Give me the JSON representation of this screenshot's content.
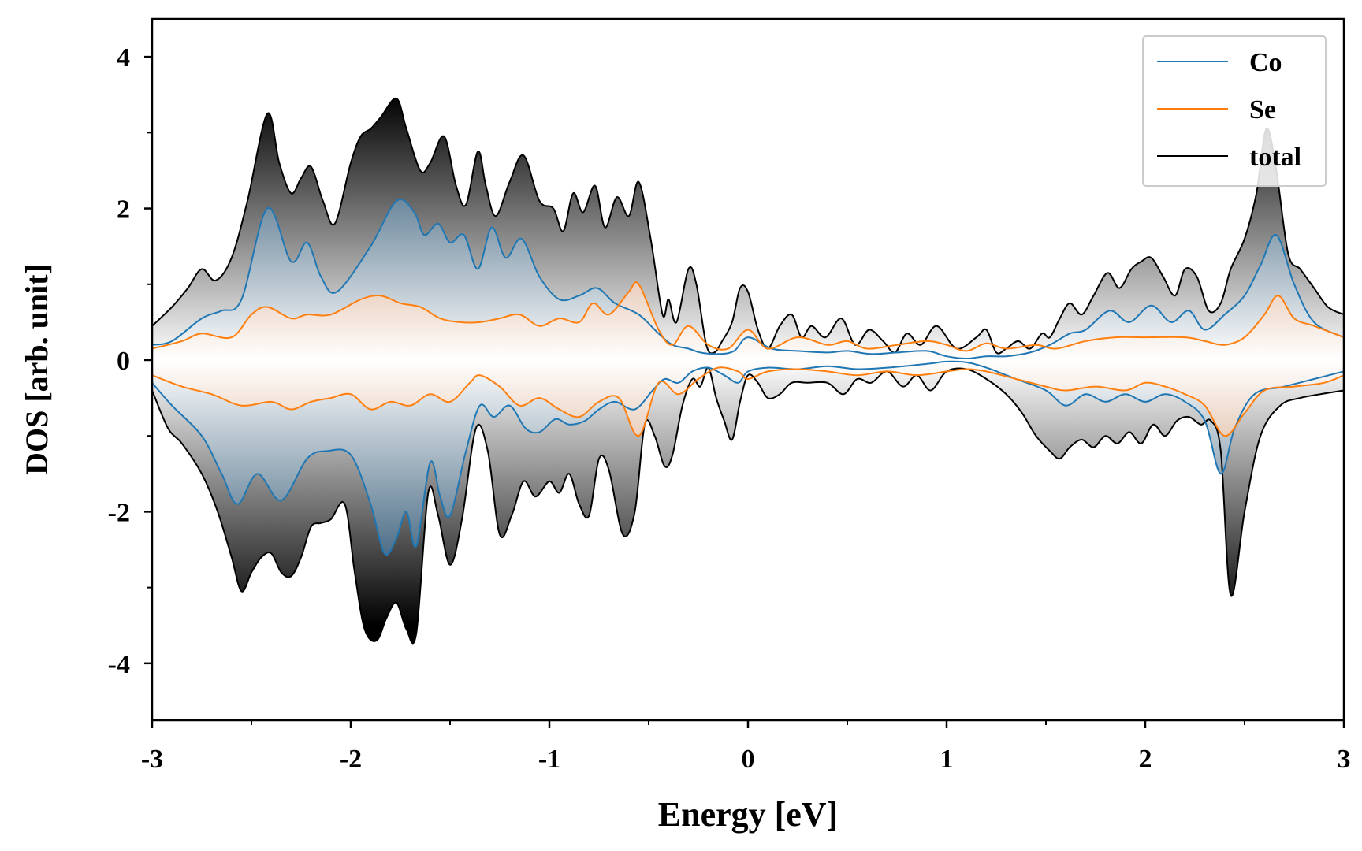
{
  "chart_data": {
    "type": "area",
    "title": "",
    "xlabel": "Energy [eV]",
    "ylabel": "DOS [arb. unit]",
    "xlim": [
      -3,
      3
    ],
    "ylim": [
      -4.75,
      4.5
    ],
    "x_ticks": [
      -3,
      -2,
      -1,
      0,
      1,
      2,
      3
    ],
    "x_tick_labels": [
      "-3",
      "-2",
      "-1",
      "0",
      "1",
      "2",
      "3"
    ],
    "y_ticks": [
      -4,
      -2,
      0,
      2,
      4
    ],
    "y_tick_labels": [
      "-4",
      "-2",
      "0",
      "2",
      "4"
    ],
    "legend_position": "top-right",
    "grid": false,
    "series": [
      {
        "name": "Co",
        "color": "#1f77b4",
        "fill_color": "#0d3a5c",
        "spin_up": {
          "x": [
            -3.0,
            -2.9,
            -2.75,
            -2.65,
            -2.55,
            -2.42,
            -2.3,
            -2.22,
            -2.15,
            -2.07,
            -1.9,
            -1.77,
            -1.68,
            -1.63,
            -1.56,
            -1.5,
            -1.43,
            -1.36,
            -1.29,
            -1.22,
            -1.14,
            -1.05,
            -0.95,
            -0.85,
            -0.76,
            -0.67,
            -0.55,
            -0.45,
            -0.38,
            -0.3,
            -0.24,
            -0.15,
            -0.07,
            0.0,
            0.12,
            0.25,
            0.4,
            0.5,
            0.62,
            0.75,
            0.9,
            1.0,
            1.1,
            1.2,
            1.3,
            1.42,
            1.52,
            1.62,
            1.7,
            1.82,
            1.92,
            2.03,
            2.13,
            2.22,
            2.3,
            2.4,
            2.5,
            2.58,
            2.66,
            2.75,
            2.85,
            3.0
          ],
          "y": [
            0.2,
            0.25,
            0.55,
            0.65,
            0.8,
            2.0,
            1.3,
            1.55,
            1.1,
            0.9,
            1.5,
            2.1,
            1.95,
            1.65,
            1.8,
            1.55,
            1.65,
            1.2,
            1.75,
            1.35,
            1.6,
            1.1,
            0.8,
            0.85,
            0.95,
            0.75,
            0.6,
            0.35,
            0.2,
            0.15,
            0.1,
            0.08,
            0.12,
            0.3,
            0.15,
            0.12,
            0.1,
            0.12,
            0.08,
            0.1,
            0.12,
            0.05,
            0.02,
            0.05,
            0.05,
            0.1,
            0.2,
            0.35,
            0.4,
            0.65,
            0.5,
            0.72,
            0.5,
            0.65,
            0.4,
            0.6,
            0.85,
            1.25,
            1.65,
            1.0,
            0.5,
            0.3
          ]
        },
        "spin_down": {
          "x": [
            -3.0,
            -2.9,
            -2.75,
            -2.65,
            -2.57,
            -2.47,
            -2.35,
            -2.22,
            -2.12,
            -2.0,
            -1.9,
            -1.83,
            -1.77,
            -1.72,
            -1.67,
            -1.6,
            -1.55,
            -1.5,
            -1.42,
            -1.35,
            -1.28,
            -1.2,
            -1.12,
            -1.05,
            -0.97,
            -0.9,
            -0.82,
            -0.75,
            -0.67,
            -0.57,
            -0.48,
            -0.42,
            -0.35,
            -0.28,
            -0.2,
            -0.12,
            -0.05,
            0.0,
            0.1,
            0.25,
            0.4,
            0.55,
            0.7,
            0.9,
            1.0,
            1.1,
            1.2,
            1.35,
            1.5,
            1.6,
            1.7,
            1.8,
            1.9,
            2.0,
            2.1,
            2.2,
            2.3,
            2.38,
            2.45,
            2.55,
            2.7,
            2.85,
            3.0
          ],
          "y": [
            -0.3,
            -0.6,
            -1.0,
            -1.5,
            -1.9,
            -1.5,
            -1.85,
            -1.3,
            -1.2,
            -1.25,
            -1.9,
            -2.55,
            -2.35,
            -2.0,
            -2.45,
            -1.35,
            -1.8,
            -2.05,
            -1.2,
            -0.6,
            -0.75,
            -0.6,
            -0.9,
            -0.95,
            -0.78,
            -0.85,
            -0.8,
            -0.65,
            -0.55,
            -0.65,
            -0.4,
            -0.25,
            -0.3,
            -0.15,
            -0.1,
            -0.2,
            -0.3,
            -0.15,
            -0.1,
            -0.12,
            -0.08,
            -0.12,
            -0.1,
            -0.05,
            -0.02,
            -0.03,
            -0.1,
            -0.25,
            -0.4,
            -0.6,
            -0.45,
            -0.55,
            -0.45,
            -0.55,
            -0.45,
            -0.55,
            -0.8,
            -1.5,
            -0.9,
            -0.45,
            -0.35,
            -0.25,
            -0.15
          ]
        }
      },
      {
        "name": "Se",
        "color": "#ff7f0e",
        "fill_color": "#b5571a",
        "spin_up": {
          "x": [
            -3.0,
            -2.85,
            -2.75,
            -2.6,
            -2.5,
            -2.42,
            -2.3,
            -2.22,
            -2.1,
            -1.95,
            -1.85,
            -1.75,
            -1.65,
            -1.55,
            -1.45,
            -1.35,
            -1.25,
            -1.15,
            -1.05,
            -0.95,
            -0.85,
            -0.78,
            -0.7,
            -0.6,
            -0.55,
            -0.45,
            -0.38,
            -0.3,
            -0.2,
            -0.1,
            0.0,
            0.1,
            0.25,
            0.4,
            0.5,
            0.6,
            0.75,
            0.9,
            1.0,
            1.1,
            1.2,
            1.3,
            1.45,
            1.55,
            1.7,
            1.85,
            2.0,
            2.2,
            2.3,
            2.4,
            2.5,
            2.6,
            2.67,
            2.75,
            2.85,
            3.0
          ],
          "y": [
            0.15,
            0.25,
            0.35,
            0.3,
            0.6,
            0.7,
            0.55,
            0.6,
            0.6,
            0.8,
            0.85,
            0.75,
            0.7,
            0.55,
            0.5,
            0.5,
            0.55,
            0.6,
            0.45,
            0.55,
            0.5,
            0.75,
            0.6,
            0.9,
            1.0,
            0.4,
            0.2,
            0.45,
            0.2,
            0.15,
            0.4,
            0.15,
            0.3,
            0.2,
            0.25,
            0.15,
            0.2,
            0.25,
            0.2,
            0.12,
            0.22,
            0.15,
            0.2,
            0.15,
            0.25,
            0.3,
            0.3,
            0.3,
            0.25,
            0.2,
            0.3,
            0.6,
            0.85,
            0.55,
            0.45,
            0.3
          ]
        },
        "spin_down": {
          "x": [
            -3.0,
            -2.85,
            -2.7,
            -2.55,
            -2.4,
            -2.3,
            -2.2,
            -2.1,
            -2.0,
            -1.9,
            -1.8,
            -1.7,
            -1.6,
            -1.5,
            -1.4,
            -1.35,
            -1.25,
            -1.15,
            -1.05,
            -0.95,
            -0.85,
            -0.75,
            -0.65,
            -0.55,
            -0.45,
            -0.35,
            -0.25,
            -0.15,
            -0.05,
            0.0,
            0.1,
            0.25,
            0.4,
            0.55,
            0.7,
            0.85,
            1.0,
            1.1,
            1.2,
            1.35,
            1.5,
            1.6,
            1.75,
            1.9,
            2.0,
            2.1,
            2.2,
            2.3,
            2.4,
            2.5,
            2.6,
            2.75,
            2.9,
            3.0
          ],
          "y": [
            -0.2,
            -0.35,
            -0.45,
            -0.6,
            -0.55,
            -0.65,
            -0.55,
            -0.5,
            -0.45,
            -0.65,
            -0.55,
            -0.6,
            -0.45,
            -0.55,
            -0.3,
            -0.2,
            -0.35,
            -0.6,
            -0.5,
            -0.65,
            -0.75,
            -0.55,
            -0.5,
            -1.0,
            -0.3,
            -0.45,
            -0.25,
            -0.1,
            -0.15,
            -0.25,
            -0.15,
            -0.12,
            -0.15,
            -0.2,
            -0.15,
            -0.2,
            -0.15,
            -0.12,
            -0.15,
            -0.25,
            -0.35,
            -0.4,
            -0.35,
            -0.4,
            -0.3,
            -0.35,
            -0.45,
            -0.6,
            -1.0,
            -0.7,
            -0.4,
            -0.35,
            -0.3,
            -0.2
          ]
        }
      },
      {
        "name": "total",
        "color": "#000000",
        "fill_color": "#000000",
        "spin_up": {
          "x": [
            -3.0,
            -2.9,
            -2.82,
            -2.75,
            -2.68,
            -2.6,
            -2.52,
            -2.42,
            -2.36,
            -2.3,
            -2.25,
            -2.2,
            -2.14,
            -2.08,
            -2.0,
            -1.95,
            -1.9,
            -1.85,
            -1.77,
            -1.72,
            -1.65,
            -1.6,
            -1.53,
            -1.47,
            -1.42,
            -1.36,
            -1.32,
            -1.27,
            -1.2,
            -1.13,
            -1.05,
            -0.98,
            -0.93,
            -0.88,
            -0.83,
            -0.77,
            -0.72,
            -0.66,
            -0.6,
            -0.55,
            -0.49,
            -0.43,
            -0.4,
            -0.36,
            -0.3,
            -0.26,
            -0.21,
            -0.17,
            -0.13,
            -0.08,
            -0.04,
            0.0,
            0.05,
            0.1,
            0.16,
            0.22,
            0.27,
            0.32,
            0.39,
            0.47,
            0.54,
            0.61,
            0.68,
            0.74,
            0.8,
            0.87,
            0.95,
            1.05,
            1.15,
            1.2,
            1.25,
            1.3,
            1.36,
            1.42,
            1.48,
            1.52,
            1.57,
            1.62,
            1.68,
            1.74,
            1.81,
            1.87,
            1.93,
            1.98,
            2.03,
            2.09,
            2.15,
            2.2,
            2.26,
            2.32,
            2.38,
            2.43,
            2.5,
            2.56,
            2.61,
            2.66,
            2.72,
            2.78,
            2.85,
            2.92,
            3.0
          ],
          "y": [
            0.45,
            0.7,
            0.95,
            1.2,
            1.05,
            1.35,
            2.1,
            3.25,
            2.6,
            2.2,
            2.4,
            2.55,
            2.1,
            1.8,
            2.6,
            2.95,
            3.05,
            3.2,
            3.45,
            3.05,
            2.5,
            2.6,
            2.95,
            2.3,
            2.05,
            2.75,
            2.3,
            1.9,
            2.35,
            2.7,
            2.1,
            2.0,
            1.7,
            2.2,
            1.95,
            2.3,
            1.75,
            2.15,
            1.9,
            2.35,
            1.6,
            0.6,
            0.8,
            0.5,
            1.2,
            1.0,
            0.2,
            0.1,
            0.25,
            0.5,
            0.95,
            0.9,
            0.4,
            0.15,
            0.45,
            0.6,
            0.3,
            0.45,
            0.3,
            0.55,
            0.2,
            0.4,
            0.25,
            0.1,
            0.35,
            0.2,
            0.45,
            0.15,
            0.3,
            0.4,
            0.1,
            0.15,
            0.25,
            0.15,
            0.35,
            0.3,
            0.55,
            0.75,
            0.6,
            0.85,
            1.15,
            0.95,
            1.2,
            1.3,
            1.35,
            1.1,
            0.85,
            1.2,
            1.1,
            0.65,
            0.75,
            1.2,
            1.6,
            2.2,
            3.05,
            2.5,
            1.4,
            1.2,
            0.95,
            0.7,
            0.6
          ]
        },
        "spin_down": {
          "x": [
            -3.0,
            -2.92,
            -2.85,
            -2.75,
            -2.67,
            -2.6,
            -2.55,
            -2.5,
            -2.45,
            -2.4,
            -2.35,
            -2.3,
            -2.25,
            -2.2,
            -2.15,
            -2.1,
            -2.03,
            -1.98,
            -1.93,
            -1.87,
            -1.82,
            -1.77,
            -1.72,
            -1.67,
            -1.61,
            -1.56,
            -1.5,
            -1.44,
            -1.37,
            -1.31,
            -1.25,
            -1.19,
            -1.13,
            -1.07,
            -1.0,
            -0.95,
            -0.9,
            -0.85,
            -0.8,
            -0.75,
            -0.7,
            -0.63,
            -0.57,
            -0.52,
            -0.47,
            -0.42,
            -0.38,
            -0.33,
            -0.28,
            -0.24,
            -0.2,
            -0.16,
            -0.12,
            -0.08,
            -0.04,
            0.0,
            0.05,
            0.1,
            0.16,
            0.22,
            0.3,
            0.4,
            0.48,
            0.55,
            0.62,
            0.7,
            0.78,
            0.85,
            0.92,
            1.0,
            1.1,
            1.2,
            1.3,
            1.38,
            1.45,
            1.52,
            1.57,
            1.62,
            1.68,
            1.74,
            1.8,
            1.86,
            1.92,
            1.98,
            2.04,
            2.1,
            2.16,
            2.22,
            2.28,
            2.33,
            2.38,
            2.43,
            2.5,
            2.58,
            2.68,
            2.78,
            2.88,
            3.0
          ],
          "y": [
            -0.4,
            -0.9,
            -1.1,
            -1.5,
            -2.0,
            -2.6,
            -3.05,
            -2.8,
            -2.6,
            -2.55,
            -2.8,
            -2.85,
            -2.6,
            -2.2,
            -2.15,
            -2.1,
            -1.9,
            -2.8,
            -3.55,
            -3.7,
            -3.4,
            -3.2,
            -3.55,
            -3.6,
            -1.75,
            -2.05,
            -2.7,
            -2.1,
            -0.9,
            -1.2,
            -2.3,
            -2.05,
            -1.6,
            -1.8,
            -1.6,
            -1.75,
            -1.5,
            -1.9,
            -2.05,
            -1.3,
            -1.45,
            -2.3,
            -2.0,
            -0.85,
            -1.0,
            -1.4,
            -1.25,
            -0.6,
            -0.25,
            -0.35,
            -0.1,
            -0.5,
            -0.8,
            -1.05,
            -0.55,
            -0.2,
            -0.3,
            -0.5,
            -0.45,
            -0.3,
            -0.3,
            -0.3,
            -0.45,
            -0.25,
            -0.3,
            -0.15,
            -0.35,
            -0.2,
            -0.4,
            -0.15,
            -0.12,
            -0.25,
            -0.45,
            -0.7,
            -1.0,
            -1.2,
            -1.3,
            -1.15,
            -1.05,
            -1.15,
            -1.0,
            -1.1,
            -0.95,
            -1.1,
            -0.85,
            -1.0,
            -0.8,
            -0.75,
            -0.85,
            -0.8,
            -1.2,
            -3.1,
            -2.0,
            -1.0,
            -0.6,
            -0.5,
            -0.45,
            -0.4
          ]
        }
      }
    ]
  }
}
